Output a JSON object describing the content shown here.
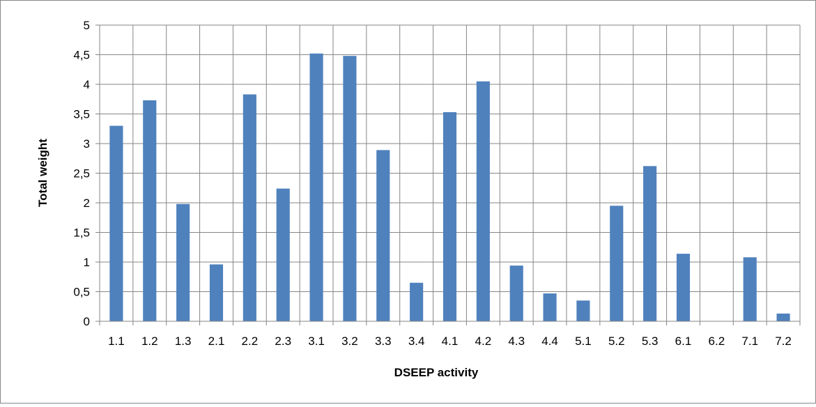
{
  "chart_data": {
    "type": "bar",
    "title": "",
    "xlabel": "DSEEP activity",
    "ylabel": "Total weight",
    "ylim": [
      0,
      5
    ],
    "yticks": [
      "0",
      "0,5",
      "1",
      "1,5",
      "2",
      "2,5",
      "3",
      "3,5",
      "4",
      "4,5",
      "5"
    ],
    "grid": "vertical and horizontal",
    "legend": "none",
    "bar_color": "#4f81bd",
    "categories": [
      "1.1",
      "1.2",
      "1.3",
      "2.1",
      "2.2",
      "2.3",
      "3.1",
      "3.2",
      "3.3",
      "3.4",
      "4.1",
      "4.2",
      "4.3",
      "4.4",
      "5.1",
      "5.2",
      "5.3",
      "6.1",
      "6.2",
      "7.1",
      "7.2"
    ],
    "values": [
      3.3,
      3.73,
      1.98,
      0.96,
      3.83,
      2.24,
      4.52,
      4.48,
      2.89,
      0.65,
      3.53,
      4.05,
      0.94,
      0.47,
      0.35,
      1.95,
      2.62,
      1.14,
      0,
      1.08,
      0.13
    ]
  }
}
